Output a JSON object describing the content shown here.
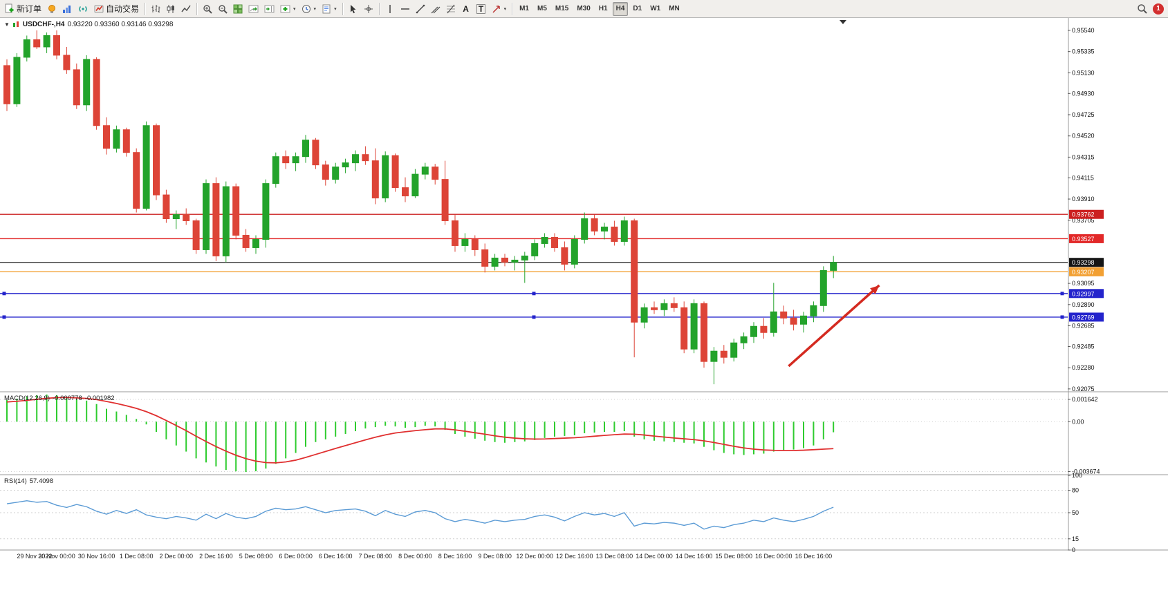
{
  "toolbar": {
    "new_order": "新订单",
    "auto_trading": "自动交易",
    "text_tool": "A",
    "label_tool": "T",
    "timeframes": [
      "M1",
      "M5",
      "M15",
      "M30",
      "H1",
      "H4",
      "D1",
      "W1",
      "MN"
    ],
    "active_timeframe": "H4",
    "notification_count": "1"
  },
  "chart_header": {
    "symbol": "USDCHF-,H4",
    "ohlc": "0.93220 0.93360 0.93146 0.93298"
  },
  "macd_panel": {
    "label": "MACD(12,26,9)",
    "macd_value": "-0.000778",
    "signal_value": "-0.001982"
  },
  "rsi_panel": {
    "label": "RSI(14)",
    "value": "57.4098"
  },
  "chart_data": {
    "type": "candlestick",
    "symbol": "USDCHF-",
    "timeframe": "H4",
    "current_bar": {
      "open": 0.9322,
      "high": 0.9336,
      "low": 0.93146,
      "close": 0.93298
    },
    "colors": {
      "up": "#23a32b",
      "down": "#dd4437",
      "macd_histogram": "#2ecc2e",
      "macd_signal": "#e03030",
      "rsi_line": "#5b9bd5"
    },
    "price_range": {
      "min": 0.92054,
      "max": 0.9566
    },
    "y_ticks": [
      0.9554,
      0.95335,
      0.9513,
      0.9493,
      0.94725,
      0.9452,
      0.94315,
      0.94115,
      0.9391,
      0.93705,
      0.93095,
      0.9289,
      0.92685,
      0.92485,
      0.9228,
      0.92075
    ],
    "h_lines": [
      {
        "price": 0.93762,
        "label": "0.93762",
        "color": "#cc2020",
        "tag_bg": "#cc2020",
        "tag_fg": "#ffffff",
        "handles": false
      },
      {
        "price": 0.93527,
        "label": "0.93527",
        "color": "#e22828",
        "tag_bg": "#e22828",
        "tag_fg": "#ffffff",
        "handles": false
      },
      {
        "price": 0.93298,
        "label": "0.93298",
        "color": "#3f3f3f",
        "tag_bg": "#151515",
        "tag_fg": "#ffffff",
        "handles": false
      },
      {
        "price": 0.93207,
        "label": "0.93207",
        "color": "#f2a033",
        "tag_bg": "#f2a033",
        "tag_fg": "#ffffff",
        "handles": false
      },
      {
        "price": 0.92997,
        "label": "0.92997",
        "color": "#2424cc",
        "tag_bg": "#2424cc",
        "tag_fg": "#ffffff",
        "handles": true
      },
      {
        "price": 0.92769,
        "label": "0.92769",
        "color": "#2424cc",
        "tag_bg": "#2424cc",
        "tag_fg": "#ffffff",
        "handles": true
      }
    ],
    "candles": [
      [
        0.952,
        0.9526,
        0.9476,
        0.9483
      ],
      [
        0.9483,
        0.9532,
        0.948,
        0.9528
      ],
      [
        0.9528,
        0.9549,
        0.9524,
        0.9545
      ],
      [
        0.9545,
        0.9554,
        0.9536,
        0.9538
      ],
      [
        0.9538,
        0.9552,
        0.9532,
        0.9549
      ],
      [
        0.9549,
        0.9554,
        0.9526,
        0.953
      ],
      [
        0.953,
        0.9538,
        0.9512,
        0.9516
      ],
      [
        0.9516,
        0.9522,
        0.9478,
        0.9482
      ],
      [
        0.9482,
        0.953,
        0.9476,
        0.9526
      ],
      [
        0.9526,
        0.9528,
        0.9458,
        0.9462
      ],
      [
        0.9462,
        0.947,
        0.9434,
        0.944
      ],
      [
        0.944,
        0.9462,
        0.9436,
        0.9458
      ],
      [
        0.9458,
        0.946,
        0.9432,
        0.9436
      ],
      [
        0.9436,
        0.944,
        0.9378,
        0.9382
      ],
      [
        0.9382,
        0.9466,
        0.938,
        0.9462
      ],
      [
        0.9462,
        0.9464,
        0.939,
        0.9395
      ],
      [
        0.9395,
        0.94,
        0.9368,
        0.9372
      ],
      [
        0.9372,
        0.938,
        0.9362,
        0.9376
      ],
      [
        0.9376,
        0.9382,
        0.9366,
        0.937
      ],
      [
        0.937,
        0.9372,
        0.9338,
        0.9342
      ],
      [
        0.9342,
        0.941,
        0.9338,
        0.9406
      ],
      [
        0.9406,
        0.9412,
        0.9331,
        0.9336
      ],
      [
        0.9336,
        0.9408,
        0.933,
        0.9403
      ],
      [
        0.9403,
        0.9406,
        0.9352,
        0.9356
      ],
      [
        0.9356,
        0.9362,
        0.934,
        0.9344
      ],
      [
        0.9344,
        0.9356,
        0.9338,
        0.9352
      ],
      [
        0.9352,
        0.941,
        0.9344,
        0.9406
      ],
      [
        0.9406,
        0.9436,
        0.9402,
        0.9432
      ],
      [
        0.9432,
        0.9438,
        0.942,
        0.9426
      ],
      [
        0.9426,
        0.9436,
        0.9418,
        0.9432
      ],
      [
        0.9432,
        0.9453,
        0.9426,
        0.9448
      ],
      [
        0.9448,
        0.945,
        0.942,
        0.9424
      ],
      [
        0.9424,
        0.9428,
        0.9404,
        0.941
      ],
      [
        0.941,
        0.9426,
        0.9406,
        0.9422
      ],
      [
        0.9422,
        0.943,
        0.9416,
        0.9426
      ],
      [
        0.9426,
        0.9438,
        0.9418,
        0.9434
      ],
      [
        0.9434,
        0.9442,
        0.9424,
        0.9428
      ],
      [
        0.9428,
        0.944,
        0.9386,
        0.9392
      ],
      [
        0.9392,
        0.9437,
        0.9388,
        0.9433
      ],
      [
        0.9433,
        0.9435,
        0.9398,
        0.9402
      ],
      [
        0.9402,
        0.9412,
        0.9388,
        0.9394
      ],
      [
        0.9394,
        0.942,
        0.9392,
        0.9415
      ],
      [
        0.9415,
        0.9426,
        0.941,
        0.9422
      ],
      [
        0.9422,
        0.9425,
        0.9405,
        0.941
      ],
      [
        0.941,
        0.9428,
        0.9366,
        0.937
      ],
      [
        0.937,
        0.9376,
        0.934,
        0.9346
      ],
      [
        0.9346,
        0.9358,
        0.934,
        0.9352
      ],
      [
        0.9352,
        0.9356,
        0.9336,
        0.9342
      ],
      [
        0.9342,
        0.9348,
        0.932,
        0.9326
      ],
      [
        0.9326,
        0.9338,
        0.9322,
        0.9334
      ],
      [
        0.9334,
        0.9338,
        0.9326,
        0.933
      ],
      [
        0.933,
        0.9336,
        0.9322,
        0.9332
      ],
      [
        0.9332,
        0.934,
        0.931,
        0.9336
      ],
      [
        0.9336,
        0.9352,
        0.9332,
        0.9348
      ],
      [
        0.9348,
        0.9358,
        0.9344,
        0.9354
      ],
      [
        0.9354,
        0.9358,
        0.934,
        0.9344
      ],
      [
        0.9344,
        0.935,
        0.9322,
        0.9328
      ],
      [
        0.9328,
        0.9356,
        0.9324,
        0.9352
      ],
      [
        0.9352,
        0.9378,
        0.9348,
        0.9372
      ],
      [
        0.9372,
        0.9376,
        0.9356,
        0.936
      ],
      [
        0.936,
        0.9368,
        0.9352,
        0.9364
      ],
      [
        0.9364,
        0.937,
        0.9346,
        0.935
      ],
      [
        0.935,
        0.9374,
        0.9346,
        0.937
      ],
      [
        0.937,
        0.9372,
        0.9238,
        0.9272
      ],
      [
        0.9272,
        0.929,
        0.9266,
        0.9286
      ],
      [
        0.9286,
        0.9292,
        0.928,
        0.9284
      ],
      [
        0.9284,
        0.9294,
        0.9278,
        0.929
      ],
      [
        0.929,
        0.9296,
        0.9282,
        0.9286
      ],
      [
        0.9286,
        0.9292,
        0.9242,
        0.9246
      ],
      [
        0.9246,
        0.9294,
        0.9242,
        0.929
      ],
      [
        0.929,
        0.9292,
        0.9228,
        0.9234
      ],
      [
        0.9234,
        0.9248,
        0.9212,
        0.9244
      ],
      [
        0.9244,
        0.925,
        0.9232,
        0.9238
      ],
      [
        0.9238,
        0.9256,
        0.9234,
        0.9252
      ],
      [
        0.9252,
        0.9262,
        0.9246,
        0.9258
      ],
      [
        0.9258,
        0.9272,
        0.9252,
        0.9268
      ],
      [
        0.9268,
        0.9276,
        0.9256,
        0.9262
      ],
      [
        0.9262,
        0.931,
        0.9258,
        0.9282
      ],
      [
        0.9282,
        0.9288,
        0.927,
        0.9276
      ],
      [
        0.9276,
        0.9284,
        0.9264,
        0.927
      ],
      [
        0.927,
        0.9282,
        0.9262,
        0.9278
      ],
      [
        0.9278,
        0.9292,
        0.9272,
        0.9288
      ],
      [
        0.9288,
        0.9326,
        0.9282,
        0.9322
      ],
      [
        0.9322,
        0.9336,
        0.93146,
        0.93298
      ]
    ],
    "x_labels": [
      "29 Nov 2022",
      "30 Nov 00:00",
      "30 Nov 16:00",
      "1 Dec 08:00",
      "2 Dec 00:00",
      "2 Dec 16:00",
      "5 Dec 08:00",
      "6 Dec 00:00",
      "6 Dec 16:00",
      "7 Dec 08:00",
      "8 Dec 00:00",
      "8 Dec 16:00",
      "9 Dec 08:00",
      "12 Dec 00:00",
      "12 Dec 16:00",
      "13 Dec 08:00",
      "14 Dec 00:00",
      "14 Dec 16:00",
      "15 Dec 08:00",
      "16 Dec 00:00",
      "16 Dec 16:00"
    ],
    "trend_arrow": {
      "from_bar": 78.5,
      "from_price": 0.92295,
      "to_bar": 87.6,
      "to_price": 0.93076,
      "color": "#d42a20"
    },
    "macd": {
      "label": "MACD(12,26,9)",
      "macd_value": -0.000778,
      "signal_value": -0.001982,
      "range": {
        "min": -0.00385,
        "max": 0.00215
      },
      "ticks": [
        [
          "0.001642",
          0.001642
        ],
        [
          "0.00",
          0
        ],
        [
          "-0.003674",
          -0.003674
        ]
      ],
      "histogram": [
        0.0016,
        0.0017,
        0.00185,
        0.00195,
        0.002,
        0.00195,
        0.0018,
        0.00165,
        0.00155,
        0.0013,
        0.00095,
        0.00075,
        0.0005,
        0.0002,
        -0.0002,
        -0.00075,
        -0.0013,
        -0.00175,
        -0.0022,
        -0.0027,
        -0.003,
        -0.0033,
        -0.00355,
        -0.00365,
        -0.0037,
        -0.00365,
        -0.00345,
        -0.0031,
        -0.0027,
        -0.0023,
        -0.00185,
        -0.0015,
        -0.0013,
        -0.0011,
        -0.0009,
        -0.0007,
        -0.0005,
        -0.0004,
        -0.0003,
        -0.00035,
        -0.00045,
        -0.0004,
        -0.0003,
        -0.00035,
        -0.0006,
        -0.0009,
        -0.0011,
        -0.00125,
        -0.0014,
        -0.0015,
        -0.00155,
        -0.0015,
        -0.00145,
        -0.00135,
        -0.0012,
        -0.0011,
        -0.00105,
        -0.001,
        -0.00085,
        -0.0008,
        -0.00075,
        -0.00075,
        -0.0007,
        -0.0011,
        -0.0013,
        -0.0014,
        -0.00145,
        -0.0015,
        -0.00155,
        -0.0016,
        -0.00185,
        -0.0021,
        -0.0023,
        -0.0024,
        -0.00245,
        -0.0024,
        -0.00235,
        -0.0022,
        -0.0021,
        -0.00205,
        -0.00195,
        -0.00175,
        -0.0013,
        -0.000778
      ],
      "signal": [
        0.00145,
        0.0015,
        0.00157,
        0.00165,
        0.00172,
        0.00177,
        0.00178,
        0.00175,
        0.00171,
        0.00163,
        0.00149,
        0.00134,
        0.00117,
        0.00098,
        0.00074,
        0.00044,
        9e-05,
        -0.00028,
        -0.00066,
        -0.00107,
        -0.00146,
        -0.00183,
        -0.00217,
        -0.00247,
        -0.00272,
        -0.0029,
        -0.00301,
        -0.00303,
        -0.00296,
        -0.00283,
        -0.00263,
        -0.00241,
        -0.00219,
        -0.00197,
        -0.00176,
        -0.00155,
        -0.00134,
        -0.00114,
        -0.00097,
        -0.00083,
        -0.00074,
        -0.00066,
        -0.00059,
        -0.00053,
        -0.00053,
        -0.0006,
        -0.0007,
        -0.00081,
        -0.00092,
        -0.00104,
        -0.00114,
        -0.00121,
        -0.00126,
        -0.00128,
        -0.00127,
        -0.00124,
        -0.00121,
        -0.00118,
        -0.00113,
        -0.00107,
        -0.00101,
        -0.00096,
        -0.00091,
        -0.00092,
        -0.00098,
        -0.00106,
        -0.00113,
        -0.0012,
        -0.00126,
        -0.00132,
        -0.00141,
        -0.00153,
        -0.00167,
        -0.00181,
        -0.00193,
        -0.00202,
        -0.00208,
        -0.00211,
        -0.00212,
        -0.00212,
        -0.0021,
        -0.00206,
        -0.00202,
        -0.001982
      ]
    },
    "rsi": {
      "label": "RSI(14)",
      "current_value": 57.4098,
      "range": {
        "min": 0,
        "max": 100
      },
      "ticks": [
        [
          "100",
          100
        ],
        [
          "80",
          80
        ],
        [
          "50",
          50
        ],
        [
          "15",
          15
        ],
        [
          "0",
          0
        ]
      ],
      "levels": [
        80,
        50,
        15
      ],
      "values": [
        62,
        64,
        66,
        64,
        65,
        60,
        57,
        61,
        58,
        52,
        48,
        53,
        49,
        54,
        47,
        44,
        42,
        45,
        43,
        40,
        48,
        42,
        49,
        44,
        42,
        45,
        52,
        56,
        54,
        55,
        58,
        54,
        50,
        53,
        54,
        55,
        52,
        46,
        53,
        48,
        45,
        51,
        53,
        50,
        42,
        38,
        41,
        39,
        36,
        40,
        38,
        40,
        41,
        45,
        47,
        44,
        39,
        45,
        50,
        47,
        49,
        45,
        50,
        32,
        36,
        35,
        37,
        36,
        33,
        36,
        28,
        32,
        30,
        34,
        36,
        40,
        38,
        43,
        40,
        38,
        41,
        45,
        52,
        57.4
      ]
    }
  }
}
